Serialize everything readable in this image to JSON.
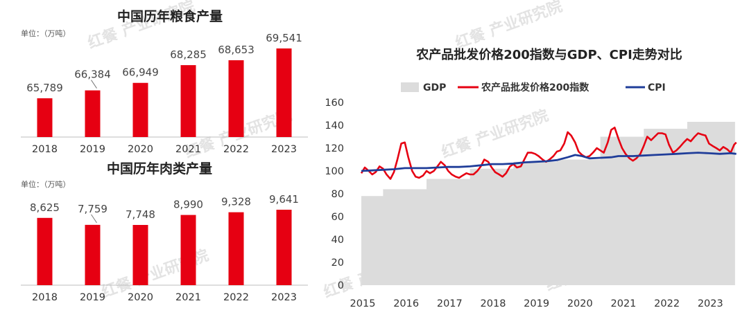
{
  "chart_data": [
    {
      "type": "bar",
      "title": "中国历年粮食产量",
      "unit_label": "单位：（万吨）",
      "categories": [
        "2018",
        "2019",
        "2020",
        "2021",
        "2022",
        "2023"
      ],
      "values": [
        65789,
        66384,
        66949,
        68285,
        68653,
        69541
      ],
      "value_labels": [
        "65,789",
        "66,384",
        "66,949",
        "68,285",
        "68,653",
        "69,541"
      ],
      "color": "#e60012"
    },
    {
      "type": "bar",
      "title": "中国历年肉类产量",
      "unit_label": "单位：（万吨）",
      "categories": [
        "2018",
        "2019",
        "2020",
        "2021",
        "2022",
        "2023"
      ],
      "values": [
        8625,
        7759,
        7748,
        8990,
        9328,
        9641
      ],
      "value_labels": [
        "8,625",
        "7,759",
        "7,748",
        "8,990",
        "9,328",
        "9,641"
      ],
      "color": "#e60012"
    },
    {
      "type": "line",
      "title": "农产品批发价格200指数与GDP、CPI走势对比",
      "ylim": [
        0,
        160
      ],
      "yticks": [
        "0",
        "20",
        "40",
        "60",
        "80",
        "100",
        "120",
        "140",
        "160"
      ],
      "x_labels": [
        "2015",
        "2016",
        "2017",
        "2018",
        "2019",
        "2020",
        "2021",
        "2022",
        "2023"
      ],
      "gdp": {
        "name": "GDP",
        "color": "#dcdcdc",
        "segments": [
          {
            "from": 2015.0,
            "to": 2015.5,
            "value": 78
          },
          {
            "from": 2015.5,
            "to": 2016.5,
            "value": 84
          },
          {
            "from": 2016.5,
            "to": 2017.5,
            "value": 93
          },
          {
            "from": 2017.5,
            "to": 2018.5,
            "value": 102
          },
          {
            "from": 2018.5,
            "to": 2019.5,
            "value": 108
          },
          {
            "from": 2019.5,
            "to": 2020.5,
            "value": 110
          },
          {
            "from": 2020.5,
            "to": 2021.5,
            "value": 130
          },
          {
            "from": 2021.5,
            "to": 2022.5,
            "value": 137
          },
          {
            "from": 2022.5,
            "to": 2023.6,
            "value": 143
          }
        ]
      },
      "agri_index": {
        "name": "农产品批发价格200指数",
        "color": "#e60012",
        "points": [
          [
            2015.0,
            98
          ],
          [
            2015.08,
            103
          ],
          [
            2015.17,
            100
          ],
          [
            2015.25,
            97
          ],
          [
            2015.33,
            99
          ],
          [
            2015.42,
            104
          ],
          [
            2015.5,
            102
          ],
          [
            2015.58,
            97
          ],
          [
            2015.67,
            93
          ],
          [
            2015.75,
            99
          ],
          [
            2015.83,
            110
          ],
          [
            2015.92,
            124
          ],
          [
            2016.0,
            125
          ],
          [
            2016.08,
            112
          ],
          [
            2016.17,
            100
          ],
          [
            2016.25,
            95
          ],
          [
            2016.33,
            94
          ],
          [
            2016.42,
            96
          ],
          [
            2016.5,
            100
          ],
          [
            2016.58,
            98
          ],
          [
            2016.67,
            100
          ],
          [
            2016.75,
            104
          ],
          [
            2016.83,
            108
          ],
          [
            2016.92,
            105
          ],
          [
            2017.0,
            100
          ],
          [
            2017.08,
            97
          ],
          [
            2017.17,
            95
          ],
          [
            2017.25,
            94
          ],
          [
            2017.33,
            96
          ],
          [
            2017.42,
            98
          ],
          [
            2017.5,
            97
          ],
          [
            2017.58,
            97
          ],
          [
            2017.67,
            100
          ],
          [
            2017.75,
            104
          ],
          [
            2017.83,
            110
          ],
          [
            2017.92,
            108
          ],
          [
            2018.0,
            103
          ],
          [
            2018.08,
            99
          ],
          [
            2018.17,
            97
          ],
          [
            2018.25,
            95
          ],
          [
            2018.33,
            98
          ],
          [
            2018.42,
            104
          ],
          [
            2018.5,
            106
          ],
          [
            2018.58,
            103
          ],
          [
            2018.67,
            104
          ],
          [
            2018.75,
            110
          ],
          [
            2018.83,
            116
          ],
          [
            2018.92,
            116
          ],
          [
            2019.0,
            115
          ],
          [
            2019.08,
            113
          ],
          [
            2019.17,
            110
          ],
          [
            2019.25,
            108
          ],
          [
            2019.33,
            110
          ],
          [
            2019.42,
            113
          ],
          [
            2019.5,
            117
          ],
          [
            2019.58,
            118
          ],
          [
            2019.67,
            124
          ],
          [
            2019.75,
            134
          ],
          [
            2019.83,
            131
          ],
          [
            2019.92,
            125
          ],
          [
            2020.0,
            117
          ],
          [
            2020.08,
            114
          ],
          [
            2020.17,
            112
          ],
          [
            2020.25,
            113
          ],
          [
            2020.33,
            116
          ],
          [
            2020.42,
            120
          ],
          [
            2020.5,
            118
          ],
          [
            2020.58,
            116
          ],
          [
            2020.67,
            125
          ],
          [
            2020.75,
            136
          ],
          [
            2020.83,
            138
          ],
          [
            2020.92,
            128
          ],
          [
            2021.0,
            120
          ],
          [
            2021.08,
            115
          ],
          [
            2021.17,
            111
          ],
          [
            2021.25,
            109
          ],
          [
            2021.33,
            111
          ],
          [
            2021.42,
            115
          ],
          [
            2021.5,
            122
          ],
          [
            2021.58,
            130
          ],
          [
            2021.67,
            127
          ],
          [
            2021.75,
            130
          ],
          [
            2021.83,
            133
          ],
          [
            2021.92,
            133
          ],
          [
            2022.0,
            132
          ],
          [
            2022.08,
            123
          ],
          [
            2022.17,
            116
          ],
          [
            2022.25,
            118
          ],
          [
            2022.33,
            121
          ],
          [
            2022.42,
            125
          ],
          [
            2022.5,
            128
          ],
          [
            2022.58,
            126
          ],
          [
            2022.67,
            130
          ],
          [
            2022.75,
            133
          ],
          [
            2022.83,
            132
          ],
          [
            2022.92,
            131
          ],
          [
            2023.0,
            124
          ],
          [
            2023.08,
            122
          ],
          [
            2023.17,
            120
          ],
          [
            2023.25,
            118
          ],
          [
            2023.33,
            121
          ],
          [
            2023.42,
            119
          ],
          [
            2023.5,
            116
          ],
          [
            2023.58,
            123
          ],
          [
            2023.63,
            125
          ]
        ]
      },
      "cpi": {
        "name": "CPI",
        "color": "#1f3d99",
        "points": [
          [
            2015.0,
            100
          ],
          [
            2015.25,
            100.5
          ],
          [
            2015.5,
            101
          ],
          [
            2015.75,
            101.5
          ],
          [
            2016.0,
            102.5
          ],
          [
            2016.25,
            102.5
          ],
          [
            2016.5,
            102.5
          ],
          [
            2016.75,
            103
          ],
          [
            2017.0,
            103.5
          ],
          [
            2017.25,
            103.5
          ],
          [
            2017.5,
            104
          ],
          [
            2017.75,
            105
          ],
          [
            2018.0,
            106
          ],
          [
            2018.25,
            106
          ],
          [
            2018.5,
            106.5
          ],
          [
            2018.75,
            107.5
          ],
          [
            2019.0,
            108
          ],
          [
            2019.25,
            108.5
          ],
          [
            2019.5,
            109.5
          ],
          [
            2019.75,
            112
          ],
          [
            2019.92,
            114
          ],
          [
            2020.08,
            113
          ],
          [
            2020.25,
            111
          ],
          [
            2020.5,
            111.5
          ],
          [
            2020.75,
            112
          ],
          [
            2020.92,
            113
          ],
          [
            2021.25,
            113
          ],
          [
            2021.5,
            113.5
          ],
          [
            2021.75,
            114
          ],
          [
            2022.0,
            114.5
          ],
          [
            2022.25,
            115
          ],
          [
            2022.5,
            115.5
          ],
          [
            2022.75,
            116
          ],
          [
            2023.0,
            115.5
          ],
          [
            2023.25,
            115
          ],
          [
            2023.5,
            115.5
          ],
          [
            2023.63,
            115
          ]
        ]
      }
    }
  ],
  "watermark": {
    "brand_mark": "红餐",
    "text": "产业研究院"
  }
}
